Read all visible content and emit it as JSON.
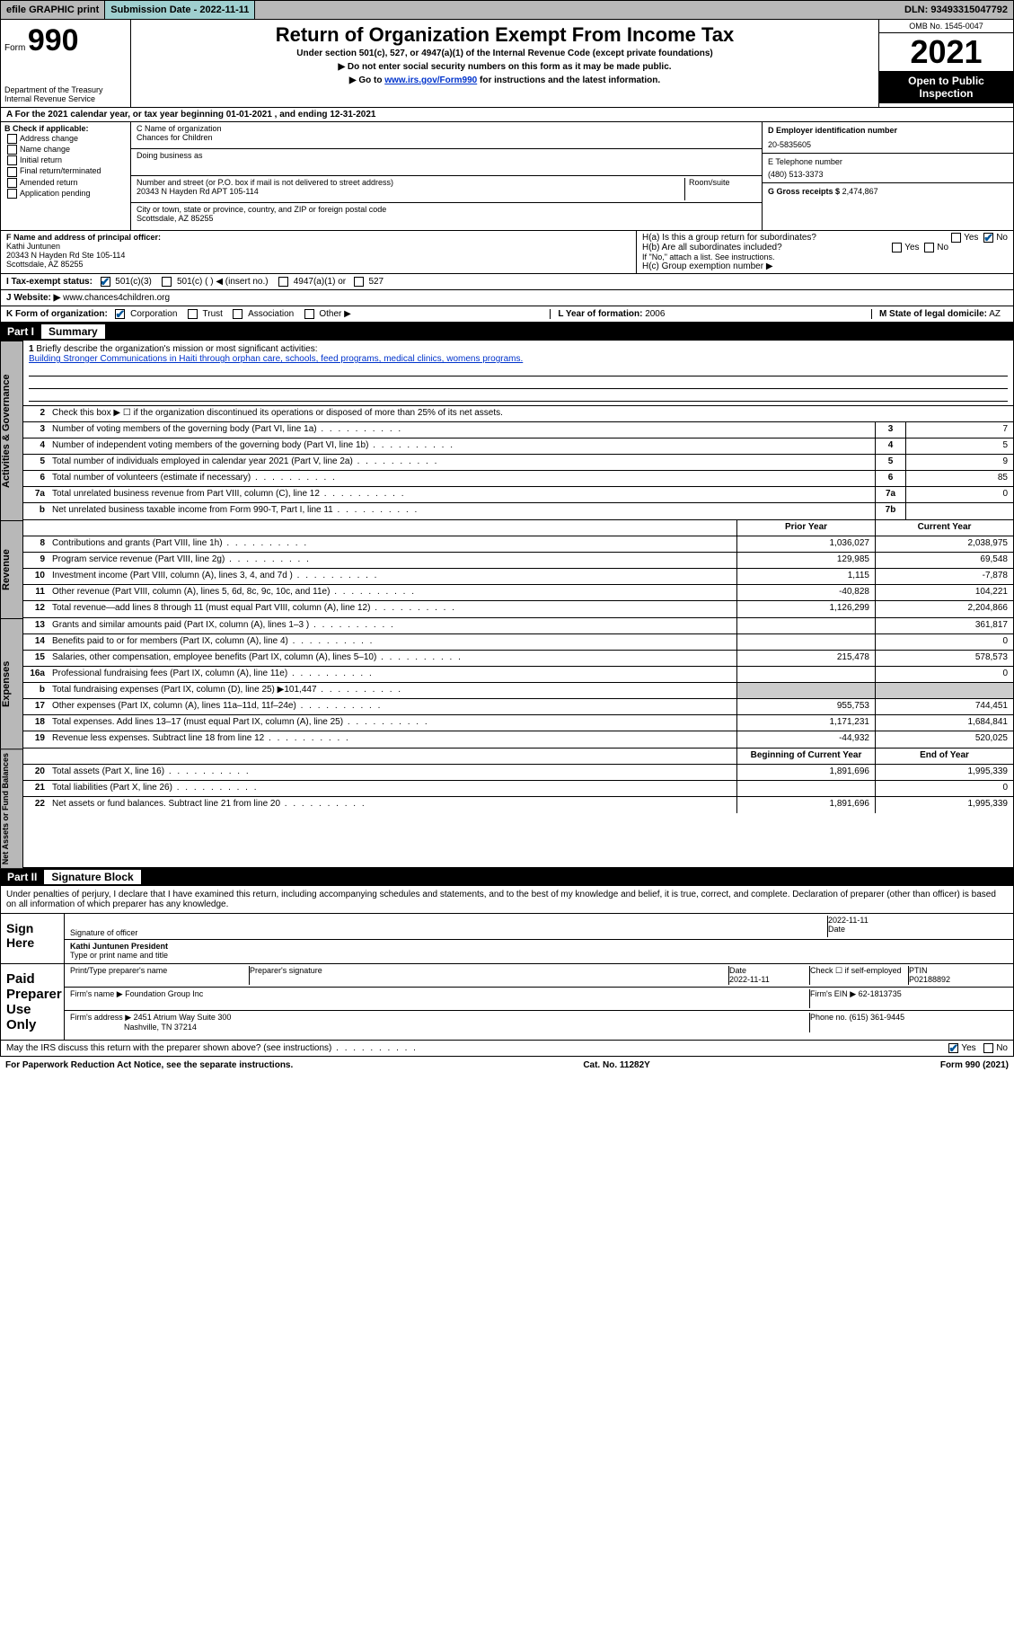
{
  "topbar": {
    "efile": "efile GRAPHIC print",
    "submission_label": "Submission Date",
    "submission_date": "2022-11-11",
    "dln_label": "DLN:",
    "dln": "93493315047792"
  },
  "header": {
    "form_label": "Form",
    "form_num": "990",
    "dept": "Department of the Treasury",
    "irs": "Internal Revenue Service",
    "title": "Return of Organization Exempt From Income Tax",
    "subtitle": "Under section 501(c), 527, or 4947(a)(1) of the Internal Revenue Code (except private foundations)",
    "no_ssn": "▶ Do not enter social security numbers on this form as it may be made public.",
    "goto_pre": "▶ Go to ",
    "goto_link": "www.irs.gov/Form990",
    "goto_post": " for instructions and the latest information.",
    "omb": "OMB No. 1545-0047",
    "year": "2021",
    "open": "Open to Public Inspection"
  },
  "row_a": "A For the 2021 calendar year, or tax year beginning 01-01-2021   , and ending 12-31-2021",
  "col_b": {
    "header": "B Check if applicable:",
    "opts": [
      "Address change",
      "Name change",
      "Initial return",
      "Final return/terminated",
      "Amended return",
      "Application pending"
    ]
  },
  "col_c": {
    "name_label": "C Name of organization",
    "name": "Chances for Children",
    "dba_label": "Doing business as",
    "addr_label": "Number and street (or P.O. box if mail is not delivered to street address)",
    "room_label": "Room/suite",
    "addr": "20343 N Hayden Rd APT 105-114",
    "city_label": "City or town, state or province, country, and ZIP or foreign postal code",
    "city": "Scottsdale, AZ  85255"
  },
  "col_d": {
    "ein_label": "D Employer identification number",
    "ein": "20-5835605",
    "phone_label": "E Telephone number",
    "phone": "(480) 513-3373",
    "gross_label": "G Gross receipts $",
    "gross": "2,474,867"
  },
  "section_f": {
    "label": "F  Name and address of principal officer:",
    "name": "Kathi Juntunen",
    "addr1": "20343 N Hayden Rd Ste 105-114",
    "addr2": "Scottsdale, AZ  85255"
  },
  "section_h": {
    "ha": "H(a)  Is this a group return for subordinates?",
    "hb": "H(b)  Are all subordinates included?",
    "hb_note": "If \"No,\" attach a list. See instructions.",
    "hc": "H(c)  Group exemption number ▶",
    "yes": "Yes",
    "no": "No"
  },
  "row_i": {
    "label": "I   Tax-exempt status:",
    "o1": "501(c)(3)",
    "o2": "501(c) (  ) ◀ (insert no.)",
    "o3": "4947(a)(1) or",
    "o4": "527"
  },
  "row_j": {
    "label": "J   Website: ▶",
    "val": "www.chances4children.org"
  },
  "row_k": {
    "label": "K Form of organization:",
    "corp": "Corporation",
    "trust": "Trust",
    "assoc": "Association",
    "other": "Other ▶"
  },
  "row_lm": {
    "l_label": "L Year of formation:",
    "l_val": "2006",
    "m_label": "M State of legal domicile:",
    "m_val": "AZ"
  },
  "part1": {
    "badge": "Part I",
    "title": "Summary",
    "l1": "Briefly describe the organization's mission or most significant activities:",
    "mission": "Building Stronger Communications in Haiti through orphan care, schools, feed programs, medical clinics, womens programs.",
    "l2": "Check this box ▶ ☐  if the organization discontinued its operations or disposed of more than 25% of its net assets.",
    "rows_ag": [
      {
        "n": "3",
        "d": "Number of voting members of the governing body (Part VI, line 1a)",
        "k": "3",
        "v": "7"
      },
      {
        "n": "4",
        "d": "Number of independent voting members of the governing body (Part VI, line 1b)",
        "k": "4",
        "v": "5"
      },
      {
        "n": "5",
        "d": "Total number of individuals employed in calendar year 2021 (Part V, line 2a)",
        "k": "5",
        "v": "9"
      },
      {
        "n": "6",
        "d": "Total number of volunteers (estimate if necessary)",
        "k": "6",
        "v": "85"
      },
      {
        "n": "7a",
        "d": "Total unrelated business revenue from Part VIII, column (C), line 12",
        "k": "7a",
        "v": "0"
      },
      {
        "n": "b",
        "d": "Net unrelated business taxable income from Form 990-T, Part I, line 11",
        "k": "7b",
        "v": ""
      }
    ],
    "hdr_prior": "Prior Year",
    "hdr_current": "Current Year",
    "rows_rev": [
      {
        "n": "8",
        "d": "Contributions and grants (Part VIII, line 1h)",
        "p": "1,036,027",
        "c": "2,038,975"
      },
      {
        "n": "9",
        "d": "Program service revenue (Part VIII, line 2g)",
        "p": "129,985",
        "c": "69,548"
      },
      {
        "n": "10",
        "d": "Investment income (Part VIII, column (A), lines 3, 4, and 7d )",
        "p": "1,115",
        "c": "-7,878"
      },
      {
        "n": "11",
        "d": "Other revenue (Part VIII, column (A), lines 5, 6d, 8c, 9c, 10c, and 11e)",
        "p": "-40,828",
        "c": "104,221"
      },
      {
        "n": "12",
        "d": "Total revenue—add lines 8 through 11 (must equal Part VIII, column (A), line 12)",
        "p": "1,126,299",
        "c": "2,204,866"
      }
    ],
    "rows_exp": [
      {
        "n": "13",
        "d": "Grants and similar amounts paid (Part IX, column (A), lines 1–3 )",
        "p": "",
        "c": "361,817"
      },
      {
        "n": "14",
        "d": "Benefits paid to or for members (Part IX, column (A), line 4)",
        "p": "",
        "c": "0"
      },
      {
        "n": "15",
        "d": "Salaries, other compensation, employee benefits (Part IX, column (A), lines 5–10)",
        "p": "215,478",
        "c": "578,573"
      },
      {
        "n": "16a",
        "d": "Professional fundraising fees (Part IX, column (A), line 11e)",
        "p": "",
        "c": "0"
      },
      {
        "n": "b",
        "d": "Total fundraising expenses (Part IX, column (D), line 25) ▶101,447",
        "p": "—",
        "c": "—"
      },
      {
        "n": "17",
        "d": "Other expenses (Part IX, column (A), lines 11a–11d, 11f–24e)",
        "p": "955,753",
        "c": "744,451"
      },
      {
        "n": "18",
        "d": "Total expenses. Add lines 13–17 (must equal Part IX, column (A), line 25)",
        "p": "1,171,231",
        "c": "1,684,841"
      },
      {
        "n": "19",
        "d": "Revenue less expenses. Subtract line 18 from line 12",
        "p": "-44,932",
        "c": "520,025"
      }
    ],
    "hdr_begin": "Beginning of Current Year",
    "hdr_end": "End of Year",
    "rows_na": [
      {
        "n": "20",
        "d": "Total assets (Part X, line 16)",
        "p": "1,891,696",
        "c": "1,995,339"
      },
      {
        "n": "21",
        "d": "Total liabilities (Part X, line 26)",
        "p": "",
        "c": "0"
      },
      {
        "n": "22",
        "d": "Net assets or fund balances. Subtract line 21 from line 20",
        "p": "1,891,696",
        "c": "1,995,339"
      }
    ]
  },
  "vtabs": {
    "ag": "Activities & Governance",
    "rev": "Revenue",
    "exp": "Expenses",
    "na": "Net Assets or Fund Balances"
  },
  "part2": {
    "badge": "Part II",
    "title": "Signature Block",
    "decl": "Under penalties of perjury, I declare that I have examined this return, including accompanying schedules and statements, and to the best of my knowledge and belief, it is true, correct, and complete. Declaration of preparer (other than officer) is based on all information of which preparer has any knowledge.",
    "sign_here": "Sign Here",
    "sig_officer": "Signature of officer",
    "sig_date": "2022-11-11",
    "date_label": "Date",
    "officer_name": "Kathi Juntunen  President",
    "officer_sub": "Type or print name and title",
    "paid": "Paid Preparer Use Only",
    "pt_name": "Print/Type preparer's name",
    "pt_sig": "Preparer's signature",
    "pt_date_label": "Date",
    "pt_date": "2022-11-11",
    "pt_check": "Check ☐ if self-employed",
    "ptin_label": "PTIN",
    "ptin": "P02188892",
    "firm_name_label": "Firm's name    ▶",
    "firm_name": "Foundation Group Inc",
    "firm_ein_label": "Firm's EIN ▶",
    "firm_ein": "62-1813735",
    "firm_addr_label": "Firm's address ▶",
    "firm_addr1": "2451 Atrium Way Suite 300",
    "firm_addr2": "Nashville, TN  37214",
    "firm_phone_label": "Phone no.",
    "firm_phone": "(615) 361-9445",
    "may_irs": "May the IRS discuss this return with the preparer shown above? (see instructions)"
  },
  "footer": {
    "left": "For Paperwork Reduction Act Notice, see the separate instructions.",
    "mid": "Cat. No. 11282Y",
    "right": "Form 990 (2021)"
  },
  "colors": {
    "link": "#0033cc",
    "gray": "#b8b8b8",
    "teal": "#9fcfcf",
    "check": "#005599"
  }
}
